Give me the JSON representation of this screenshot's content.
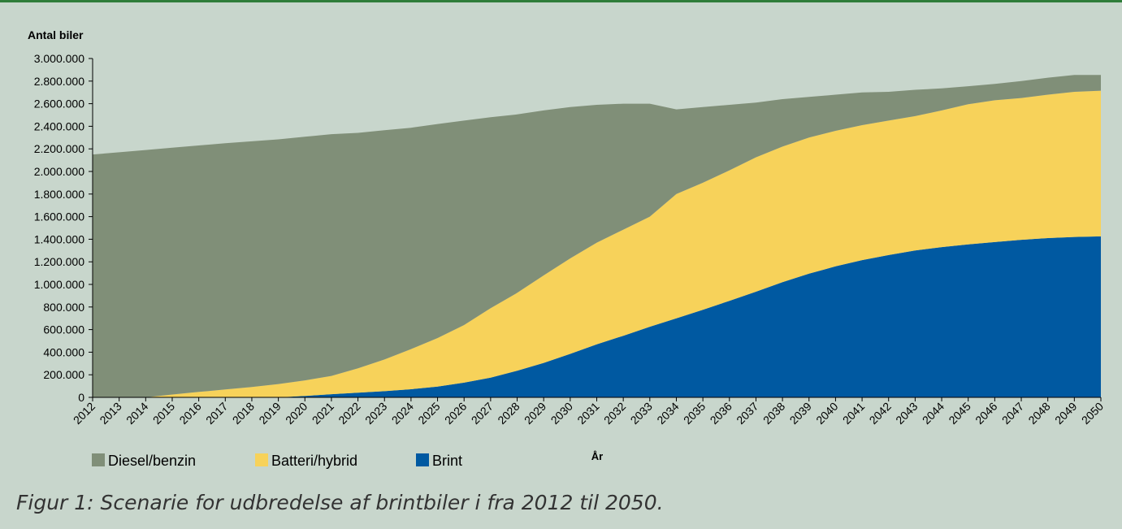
{
  "caption": "Figur 1: Scenarie for udbredelse af brintbiler i fra 2012 til 2050.",
  "colors": {
    "diesel": "#808f78",
    "battery": "#f7d25a",
    "hydrogen": "#0059a1",
    "background": "#c8d6cc",
    "top_rule": "#2f7d3a"
  },
  "chart_data": {
    "type": "area",
    "stacked": true,
    "ylabel": "Antal biler",
    "xlabel": "År",
    "ylim": [
      0,
      3000000
    ],
    "y_ticks": [
      0,
      200000,
      400000,
      600000,
      800000,
      1000000,
      1200000,
      1400000,
      1600000,
      1800000,
      2000000,
      2200000,
      2400000,
      2600000,
      2800000,
      3000000
    ],
    "y_tick_labels": [
      "0",
      "200.000",
      "400.000",
      "600.000",
      "800.000",
      "1.000.000",
      "1.200.000",
      "1.400.000",
      "1.600.000",
      "1.800.000",
      "2.000.000",
      "2.200.000",
      "2.400.000",
      "2.600.000",
      "2.800.000",
      "3.000.000"
    ],
    "x": [
      2012,
      2013,
      2014,
      2015,
      2016,
      2017,
      2018,
      2019,
      2020,
      2021,
      2022,
      2023,
      2024,
      2025,
      2026,
      2027,
      2028,
      2029,
      2030,
      2031,
      2032,
      2033,
      2034,
      2035,
      2036,
      2037,
      2038,
      2039,
      2040,
      2041,
      2042,
      2043,
      2044,
      2045,
      2046,
      2047,
      2048,
      2049,
      2050
    ],
    "legend_position": "bottom-left",
    "series": [
      {
        "name": "Brint",
        "color_key": "hydrogen",
        "values": [
          0,
          0,
          0,
          0,
          0,
          0,
          0,
          0,
          12000,
          28000,
          42000,
          55000,
          72000,
          95000,
          130000,
          175000,
          235000,
          305000,
          385000,
          470000,
          545000,
          625000,
          700000,
          775000,
          855000,
          935000,
          1020000,
          1095000,
          1160000,
          1215000,
          1260000,
          1300000,
          1330000,
          1355000,
          1375000,
          1395000,
          1410000,
          1420000,
          1425000
        ]
      },
      {
        "name": "Batteri/hybrid",
        "color_key": "battery",
        "values": [
          0,
          0,
          0,
          25000,
          48000,
          70000,
          92000,
          118000,
          138000,
          162000,
          215000,
          280000,
          355000,
          430000,
          510000,
          615000,
          690000,
          775000,
          845000,
          900000,
          940000,
          975000,
          1100000,
          1125000,
          1155000,
          1190000,
          1200000,
          1205000,
          1200000,
          1195000,
          1190000,
          1190000,
          1210000,
          1240000,
          1255000,
          1255000,
          1270000,
          1285000,
          1290000
        ]
      },
      {
        "name": "Diesel/benzin",
        "color_key": "diesel",
        "values": [
          2150000,
          2170000,
          2190000,
          2185000,
          2182000,
          2180000,
          2175000,
          2166000,
          2157000,
          2140000,
          2085000,
          2030000,
          1960000,
          1895000,
          1810000,
          1690000,
          1580000,
          1460000,
          1340000,
          1220000,
          1115000,
          1000000,
          750000,
          670000,
          580000,
          485000,
          420000,
          360000,
          320000,
          290000,
          255000,
          233000,
          195000,
          160000,
          145000,
          150000,
          150000,
          150000,
          140000
        ]
      }
    ]
  }
}
